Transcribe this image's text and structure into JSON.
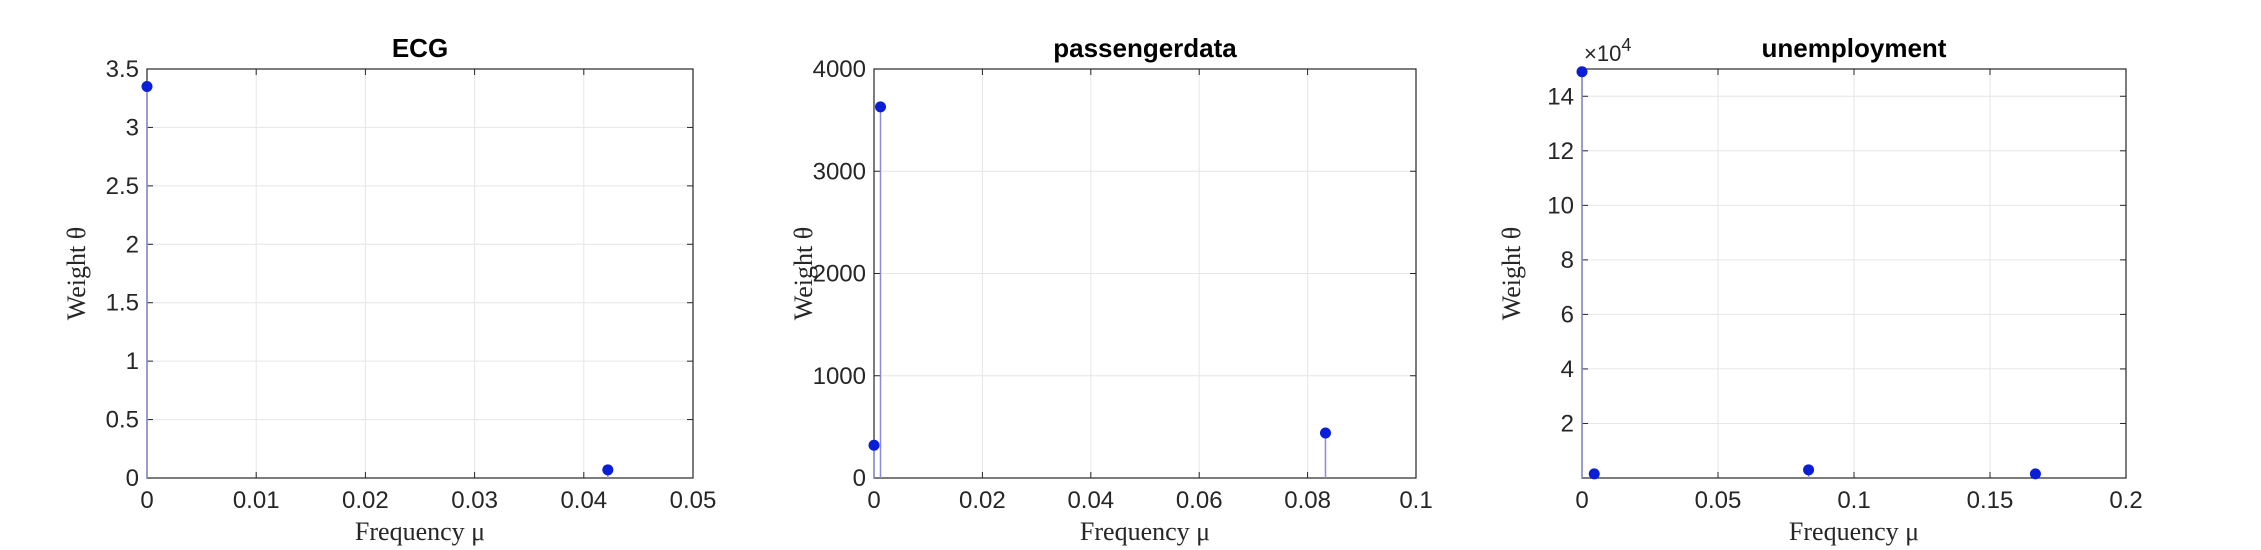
{
  "chart_data": [
    {
      "type": "scatter",
      "title": "ECG",
      "xlabel": "Frequency μ",
      "ylabel": "Weight θ",
      "xlim": [
        0,
        0.05
      ],
      "ylim": [
        0,
        3.5
      ],
      "xticks": [
        "0",
        "0.01",
        "0.02",
        "0.03",
        "0.04",
        "0.05"
      ],
      "yticks": [
        "0",
        "0.5",
        "1",
        "1.5",
        "2",
        "2.5",
        "3",
        "3.5"
      ],
      "y_exponent": "",
      "grid": true,
      "color": "#0a1ed8",
      "points": [
        {
          "x": 0.0,
          "y": 3.35
        },
        {
          "x": 0.0422,
          "y": 0.07
        }
      ]
    },
    {
      "type": "scatter",
      "title": "passengerdata",
      "xlabel": "Frequency μ",
      "ylabel": "Weight θ",
      "xlim": [
        0,
        0.1
      ],
      "ylim": [
        0,
        4000
      ],
      "xticks": [
        "0",
        "0.02",
        "0.04",
        "0.06",
        "0.08",
        "0.1"
      ],
      "yticks": [
        "0",
        "1000",
        "2000",
        "3000",
        "4000"
      ],
      "y_exponent": "",
      "grid": true,
      "color": "#0a1ed8",
      "points": [
        {
          "x": 0.0,
          "y": 320
        },
        {
          "x": 0.0012,
          "y": 3630
        },
        {
          "x": 0.0833,
          "y": 440
        }
      ]
    },
    {
      "type": "scatter",
      "title": "unemployment",
      "xlabel": "Frequency μ",
      "ylabel": "Weight θ",
      "xlim": [
        0,
        0.2
      ],
      "ylim": [
        0,
        150000
      ],
      "xticks": [
        "0",
        "0.05",
        "0.1",
        "0.15",
        "0.2"
      ],
      "yticks": [
        "2",
        "4",
        "6",
        "8",
        "10",
        "12",
        "14"
      ],
      "y_exponent": "×10",
      "y_exponent_power": "4",
      "grid": true,
      "color": "#0a1ed8",
      "points": [
        {
          "x": 0.0,
          "y": 149000
        },
        {
          "x": 0.0045,
          "y": 1500
        },
        {
          "x": 0.0833,
          "y": 3000
        },
        {
          "x": 0.1667,
          "y": 1500
        }
      ]
    }
  ]
}
